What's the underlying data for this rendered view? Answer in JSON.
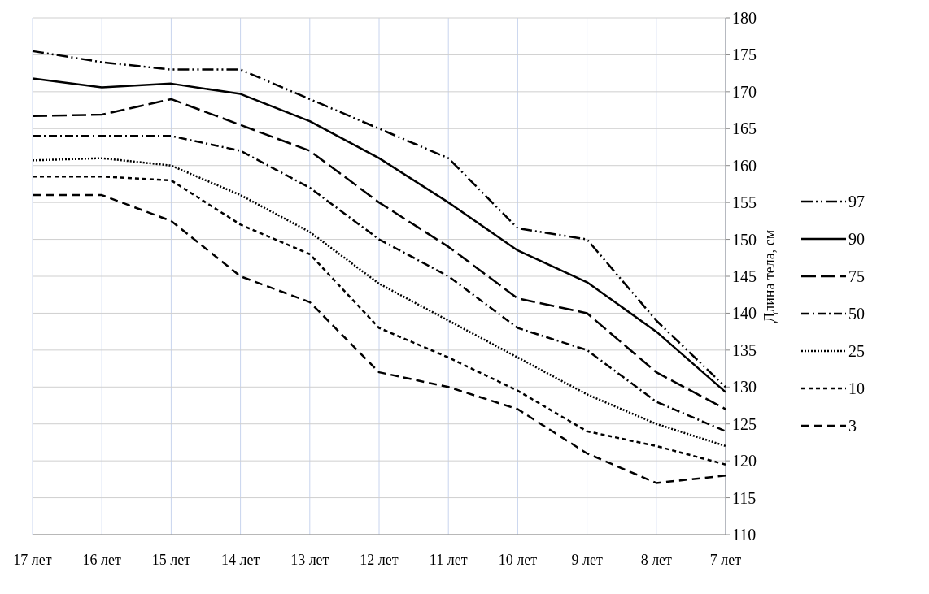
{
  "chart_data": {
    "type": "line",
    "ylabel": "Длина тела, см",
    "categories": [
      "17 лет",
      "16 лет",
      "15 лет",
      "14 лет",
      "13 лет",
      "12 лет",
      "11 лет",
      "10 лет",
      "9 лет",
      "8 лет",
      "7 лет"
    ],
    "series": [
      {
        "name": "97",
        "color": "#000000",
        "line_style": "dashdotdot",
        "values": [
          175.5,
          174,
          173,
          173,
          169,
          165,
          161,
          151.5,
          150,
          139,
          130
        ]
      },
      {
        "name": "90",
        "color": "#000000",
        "line_style": "solid",
        "values": [
          171.8,
          170.6,
          171.1,
          169.7,
          166,
          161,
          155,
          148.5,
          144.2,
          137.5,
          129.3
        ]
      },
      {
        "name": "75",
        "color": "#000000",
        "line_style": "longdash",
        "values": [
          166.7,
          166.9,
          169,
          165.5,
          162,
          155,
          149,
          142,
          140,
          132,
          127
        ]
      },
      {
        "name": "50",
        "color": "#000000",
        "line_style": "dashdot",
        "values": [
          164,
          164,
          164,
          162,
          157,
          150,
          145,
          138,
          135,
          128,
          124
        ]
      },
      {
        "name": "25",
        "color": "#000000",
        "line_style": "dotted",
        "values": [
          160.7,
          161,
          160,
          156,
          151,
          144,
          139,
          134,
          129,
          125,
          122
        ]
      },
      {
        "name": "10",
        "color": "#000000",
        "line_style": "dashed",
        "values": [
          158.5,
          158.5,
          158,
          152,
          148,
          138,
          134,
          129.5,
          124,
          122,
          119.5
        ]
      },
      {
        "name": "3",
        "color": "#000000",
        "line_style": "mediumdash",
        "values": [
          156,
          156,
          152.5,
          145,
          141.5,
          132,
          130,
          127,
          121,
          117,
          118
        ]
      }
    ],
    "ylim": [
      110,
      180
    ],
    "yticks": [
      110,
      115,
      120,
      125,
      130,
      135,
      140,
      145,
      150,
      155,
      160,
      165,
      170,
      175,
      180
    ],
    "grid": true,
    "legend": "right"
  }
}
